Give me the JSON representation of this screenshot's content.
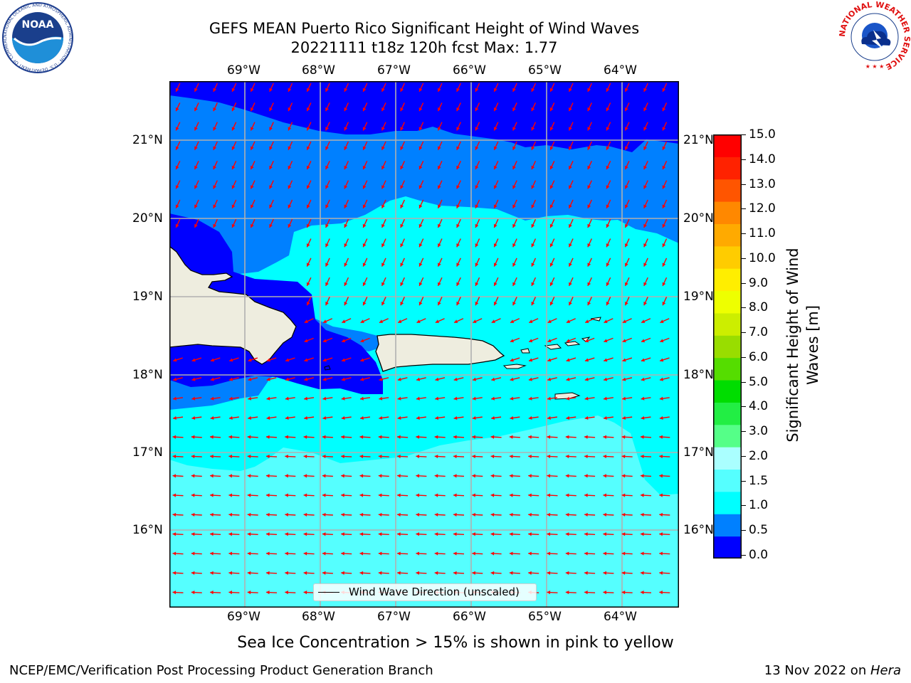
{
  "title": {
    "line1": "GEFS MEAN Puerto Rico Significant Height of Wind Waves",
    "line2": "20221111 t18z 120h fcst   Max: 1.77"
  },
  "map": {
    "lon_labels": [
      "69°W",
      "68°W",
      "67°W",
      "66°W",
      "65°W",
      "64°W"
    ],
    "lat_labels": [
      "21°N",
      "20°N",
      "19°N",
      "18°N",
      "17°N",
      "16°N"
    ],
    "legend_label": "Wind Wave Direction (unscaled)",
    "arrow_color": "#ff0000",
    "land_color": "#eeeddf",
    "fill_colors": {
      "0.0-0.5": "#0000ff",
      "0.5-1.0": "#0080ff",
      "1.0-1.5": "#00ffff",
      "1.5-2.0": "#55ffff",
      "2.0-3.0": "#aaffff"
    }
  },
  "colorbar": {
    "label": "Significant Height of Wind Waves [m]",
    "label_line1": "Significant Height of Wind",
    "label_line2": "Waves [m]",
    "ticks": [
      "15.0",
      "14.0",
      "13.0",
      "12.0",
      "11.0",
      "10.0",
      "9.0",
      "8.0",
      "7.0",
      "6.0",
      "5.0",
      "4.0",
      "3.0",
      "2.0",
      "1.5",
      "1.0",
      "0.5",
      "0.0"
    ],
    "colors": [
      "#0000ff",
      "#0080ff",
      "#00ffff",
      "#55ffff",
      "#aaffff",
      "#55ff88",
      "#22ee44",
      "#00dd00",
      "#55dd00",
      "#99dd00",
      "#ccee00",
      "#eeff00",
      "#ffee00",
      "#ffcc00",
      "#ffaa00",
      "#ff8800",
      "#ff5500",
      "#ff2200",
      "#ff0000"
    ]
  },
  "notes": {
    "sea_ice": "Sea Ice Concentration > 15% is shown in pink to yellow"
  },
  "footer": {
    "left": "NCEP/EMC/Verification Post Processing Product Generation Branch",
    "right_date": "13 Nov 2022 on ",
    "right_host": "Hera"
  },
  "logos": {
    "noaa": "NOAA",
    "noaa_ring": "NATIONAL OCEANIC AND ATMOSPHERIC ADMINISTRATION · U.S. DEPARTMENT OF COMMERCE",
    "nws_ring": "NATIONAL WEATHER SERVICE"
  }
}
